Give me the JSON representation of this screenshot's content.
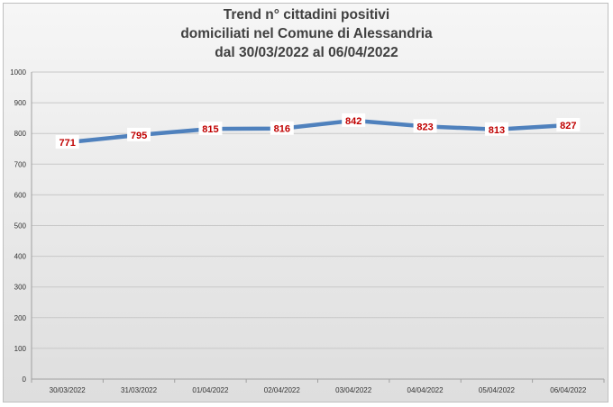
{
  "chart_data": {
    "type": "line",
    "title_lines": [
      "Trend n° cittadini positivi",
      "domiciliati nel Comune di Alessandria",
      "dal 30/03/2022 al 06/04/2022"
    ],
    "categories": [
      "30/03/2022",
      "31/03/2022",
      "01/04/2022",
      "02/04/2022",
      "03/04/2022",
      "04/04/2022",
      "05/04/2022",
      "06/04/2022"
    ],
    "values": [
      771,
      795,
      815,
      816,
      842,
      823,
      813,
      827
    ],
    "ylim": [
      0,
      1000
    ],
    "yticks": [
      0,
      100,
      200,
      300,
      400,
      500,
      600,
      700,
      800,
      900,
      1000
    ],
    "grid": true,
    "legend": "none",
    "colors": {
      "line": "#4f81bd",
      "label_text": "#c00000",
      "label_bg": "#ffffff",
      "grid": "#c8c8c8"
    }
  }
}
